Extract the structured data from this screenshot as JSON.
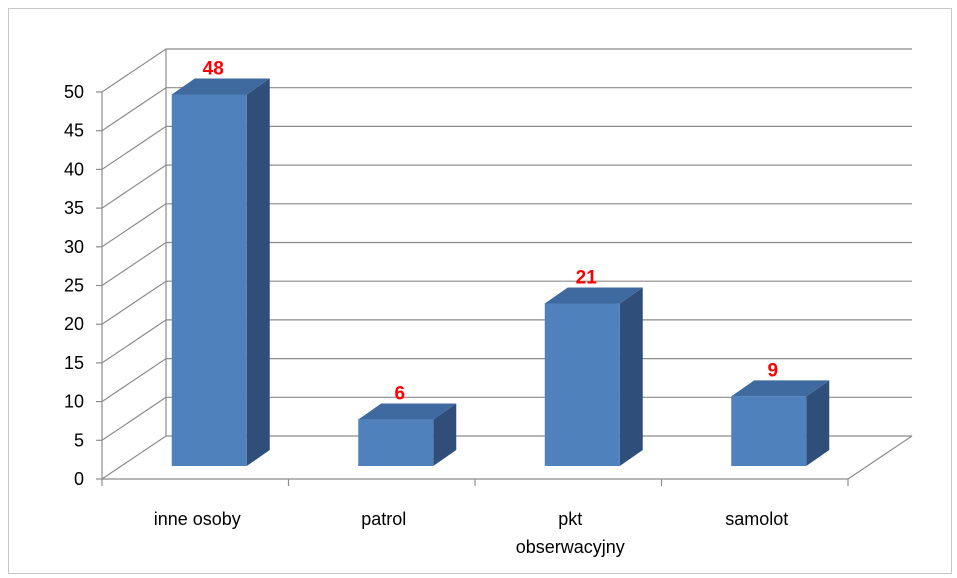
{
  "chart_data": {
    "type": "bar",
    "style": "3d-column",
    "categories": [
      [
        "inne osoby"
      ],
      [
        "patrol"
      ],
      [
        "pkt",
        "obserwacyjny"
      ],
      [
        "samolot"
      ]
    ],
    "values": [
      48,
      6,
      21,
      9
    ],
    "data_labels": [
      "48",
      "6",
      "21",
      "9"
    ],
    "ylim": [
      0,
      50
    ],
    "y_ticks": [
      "0",
      "5",
      "10",
      "15",
      "20",
      "25",
      "30",
      "35",
      "40",
      "45",
      "50"
    ],
    "grid": true,
    "legend": "none",
    "colors": {
      "bar_front": "#4f81bd",
      "bar_side": "#2f4f7a",
      "bar_top": "#3f6a9f",
      "data_label": "#ff0000",
      "gridline": "#8c8c8c"
    }
  }
}
